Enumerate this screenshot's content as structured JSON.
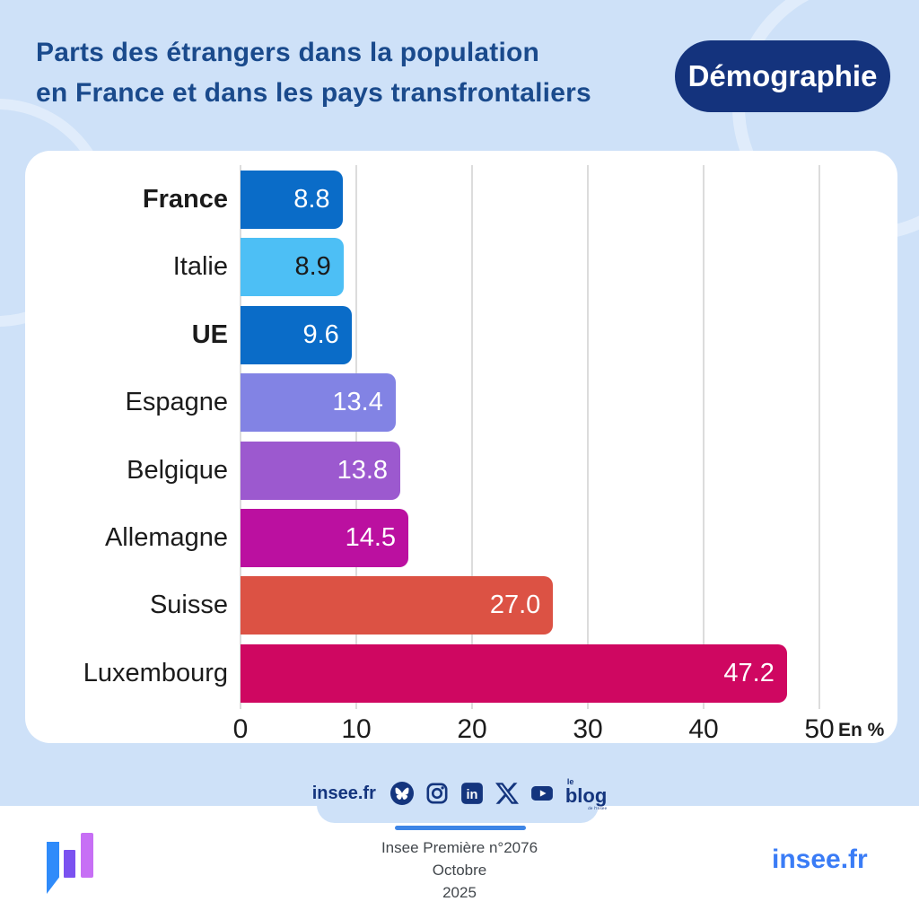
{
  "header": {
    "title_line1": "Parts des étrangers dans la population",
    "title_line2": "en France et dans les pays transfrontaliers",
    "badge_label": "Démographie"
  },
  "chart_data": {
    "type": "bar",
    "orientation": "horizontal",
    "title": "Parts des étrangers dans la population en France et dans les pays transfrontaliers",
    "categories": [
      "France",
      "Italie",
      "UE",
      "Espagne",
      "Belgique",
      "Allemagne",
      "Suisse",
      "Luxembourg"
    ],
    "values": [
      8.8,
      8.9,
      9.6,
      13.4,
      13.8,
      14.5,
      27.0,
      47.2
    ],
    "value_labels": [
      "8.8",
      "8.9",
      "9.6",
      "13.4",
      "13.8",
      "14.5",
      "27.0",
      "47.2"
    ],
    "bold_categories": [
      "France",
      "UE"
    ],
    "bar_colors": [
      "#0A6CC8",
      "#4DBFF5",
      "#0A6CC8",
      "#8283E4",
      "#9C59CF",
      "#BB10A0",
      "#DC5244",
      "#CF0761"
    ],
    "value_label_colors": [
      "#FFFFFF",
      "#1B1B1B",
      "#FFFFFF",
      "#FFFFFF",
      "#FFFFFF",
      "#FFFFFF",
      "#FFFFFF",
      "#FFFFFF"
    ],
    "x_ticks": [
      0,
      10,
      20,
      30,
      40,
      50
    ],
    "xlim": [
      0,
      50
    ],
    "unit_label": "En %",
    "grid": true,
    "legend": false
  },
  "footer": {
    "site_label": "insee.fr",
    "social_icons": [
      "bluesky",
      "instagram",
      "linkedin",
      "x",
      "youtube",
      "le-blog"
    ],
    "blog_le": "le",
    "blog_label": "blog",
    "blog_sub": "de l'Insee",
    "publication": [
      "Insee Première n°2076",
      "Octobre",
      "2025"
    ],
    "brand_label": "insee.fr"
  },
  "colors": {
    "background": "#CEE1F8",
    "card": "#FFFFFF",
    "title": "#1A4A8C",
    "badge_bg": "#14337D",
    "icon_navy": "#14357E",
    "accent_line": "#3D85E6",
    "brand_blue": "#3A7CF6",
    "grid_line": "#DCDCDC"
  }
}
